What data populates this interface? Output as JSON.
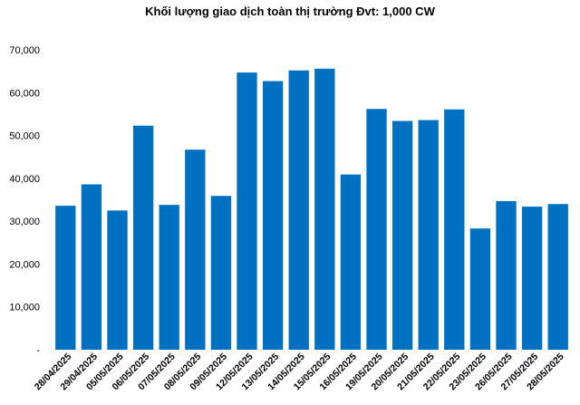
{
  "chart_data": {
    "type": "bar",
    "title": "Khối lượng giao dịch toàn thị trường Đvt: 1,000 CW",
    "xlabel": "",
    "ylabel": "",
    "ylim": [
      0,
      70000
    ],
    "yticks": [
      0,
      10000,
      20000,
      30000,
      40000,
      50000,
      60000,
      70000
    ],
    "ytick_labels": [
      "-",
      "10,000",
      "20,000",
      "30,000",
      "40,000",
      "50,000",
      "60,000",
      "70,000"
    ],
    "grid": false,
    "legend": "none",
    "bar_color": "#0070C0",
    "categories": [
      "28/04/2025",
      "29/04/2025",
      "05/05/2025",
      "06/05/2025",
      "07/05/2025",
      "08/05/2025",
      "09/05/2025",
      "12/05/2025",
      "13/05/2025",
      "14/05/2025",
      "15/05/2025",
      "16/05/2025",
      "19/05/2025",
      "20/05/2025",
      "21/05/2025",
      "22/05/2025",
      "23/05/2025",
      "26/05/2025",
      "27/05/2025",
      "28/05/2025"
    ],
    "values": [
      33600,
      38600,
      32500,
      52300,
      33800,
      46700,
      35900,
      64700,
      62700,
      65200,
      65600,
      40900,
      56200,
      53400,
      53600,
      56100,
      28300,
      34700,
      33400,
      34000
    ]
  }
}
